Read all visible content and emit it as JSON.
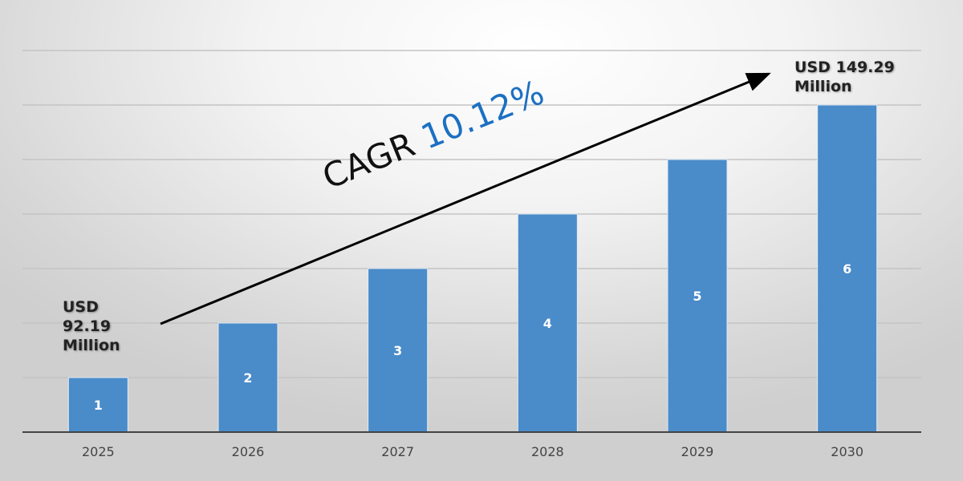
{
  "chart_data": {
    "type": "bar",
    "categories": [
      "2025",
      "2026",
      "2027",
      "2028",
      "2029",
      "2030"
    ],
    "values": [
      1,
      2,
      3,
      4,
      5,
      6
    ],
    "data_labels": [
      "1",
      "2",
      "3",
      "4",
      "5",
      "6"
    ],
    "title": "",
    "xlabel": "",
    "ylabel": "",
    "ylim": [
      0,
      7
    ],
    "grid": true,
    "legend": "none",
    "bar_color": "#4a8bc9",
    "annotations": {
      "start_value": {
        "line1": "USD",
        "line2": "92.19",
        "line3": "Million"
      },
      "end_value": {
        "line1": "USD 149.29",
        "line2": "Million"
      },
      "cagr_label": "CAGR",
      "cagr_value": "10.12%",
      "cagr_color": "#1b70c2",
      "trend_arrow": true
    }
  }
}
